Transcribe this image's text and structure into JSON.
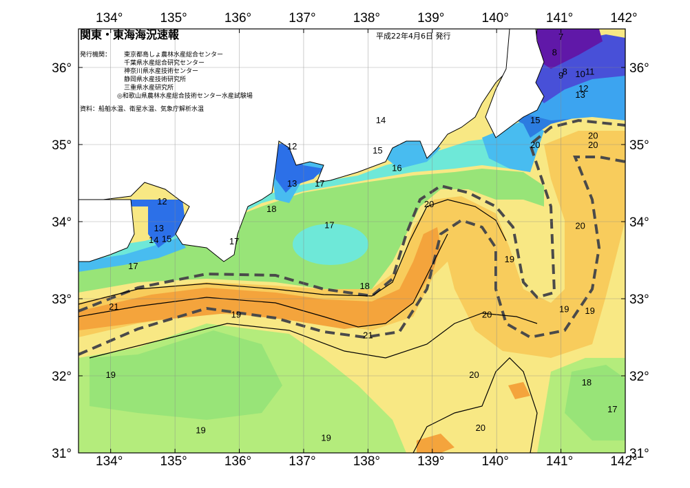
{
  "header": {
    "title": "関東・東海海況速報",
    "issue_date": "平成22年4月6日 発行"
  },
  "publishers": {
    "label": "発行機関：",
    "items": [
      "東京都島しょ農林水産総合センター",
      "千葉県水産総合研究センター",
      "神奈川県水産技術センター",
      "静岡県水産技術研究所",
      "三重県水産研究所",
      "◎和歌山県農林水産総合技術センター水産試験場"
    ]
  },
  "source": "資料：船舶水温、衛星水温、気象庁解析水温",
  "axes": {
    "lon_labels": [
      "134°",
      "135°",
      "136°",
      "137°",
      "138°",
      "139°",
      "140°",
      "141°",
      "142°"
    ],
    "lat_labels": [
      "36°",
      "35°",
      "34°",
      "33°",
      "32°",
      "31°"
    ]
  },
  "contour_labels": [
    {
      "text": "7",
      "lon": 141.0,
      "lat": 36.4
    },
    {
      "text": "8",
      "lon": 140.9,
      "lat": 36.2
    },
    {
      "text": "9",
      "lon": 141.0,
      "lat": 35.9
    },
    {
      "text": "8",
      "lon": 141.06,
      "lat": 35.95
    },
    {
      "text": "10",
      "lon": 141.3,
      "lat": 35.92
    },
    {
      "text": "11",
      "lon": 141.45,
      "lat": 35.95
    },
    {
      "text": "12",
      "lon": 141.35,
      "lat": 35.73
    },
    {
      "text": "13",
      "lon": 141.3,
      "lat": 35.65
    },
    {
      "text": "14",
      "lon": 138.2,
      "lat": 35.32
    },
    {
      "text": "15",
      "lon": 138.15,
      "lat": 34.93
    },
    {
      "text": "16",
      "lon": 138.45,
      "lat": 34.7
    },
    {
      "text": "15",
      "lon": 140.6,
      "lat": 35.32
    },
    {
      "text": "20",
      "lon": 140.6,
      "lat": 35.0
    },
    {
      "text": "20",
      "lon": 141.5,
      "lat": 35.12
    },
    {
      "text": "20",
      "lon": 141.5,
      "lat": 35.0
    },
    {
      "text": "12",
      "lon": 136.82,
      "lat": 34.98
    },
    {
      "text": "13",
      "lon": 136.82,
      "lat": 34.5
    },
    {
      "text": "17",
      "lon": 137.25,
      "lat": 34.5
    },
    {
      "text": "12",
      "lon": 134.8,
      "lat": 34.27
    },
    {
      "text": "13",
      "lon": 134.75,
      "lat": 33.92
    },
    {
      "text": "14",
      "lon": 134.67,
      "lat": 33.77
    },
    {
      "text": "15",
      "lon": 134.87,
      "lat": 33.78
    },
    {
      "text": "18",
      "lon": 136.5,
      "lat": 34.17
    },
    {
      "text": "17",
      "lon": 135.92,
      "lat": 33.75
    },
    {
      "text": "17",
      "lon": 137.4,
      "lat": 33.96
    },
    {
      "text": "17",
      "lon": 134.35,
      "lat": 33.43
    },
    {
      "text": "20",
      "lon": 138.95,
      "lat": 34.23
    },
    {
      "text": "20",
      "lon": 141.3,
      "lat": 33.95
    },
    {
      "text": "19",
      "lon": 140.2,
      "lat": 33.52
    },
    {
      "text": "18",
      "lon": 137.95,
      "lat": 33.17
    },
    {
      "text": "21",
      "lon": 134.05,
      "lat": 32.9
    },
    {
      "text": "19",
      "lon": 135.95,
      "lat": 32.8
    },
    {
      "text": "21",
      "lon": 138.0,
      "lat": 32.53
    },
    {
      "text": "20",
      "lon": 139.85,
      "lat": 32.8
    },
    {
      "text": "19",
      "lon": 141.05,
      "lat": 32.87
    },
    {
      "text": "19",
      "lon": 141.45,
      "lat": 32.85
    },
    {
      "text": "19",
      "lon": 134.0,
      "lat": 32.02
    },
    {
      "text": "20",
      "lon": 139.65,
      "lat": 32.02
    },
    {
      "text": "18",
      "lon": 141.4,
      "lat": 31.92
    },
    {
      "text": "17",
      "lon": 141.8,
      "lat": 31.57
    },
    {
      "text": "19",
      "lon": 135.4,
      "lat": 31.3
    },
    {
      "text": "19",
      "lon": 137.35,
      "lat": 31.2
    },
    {
      "text": "20",
      "lon": 139.75,
      "lat": 31.33
    }
  ]
}
